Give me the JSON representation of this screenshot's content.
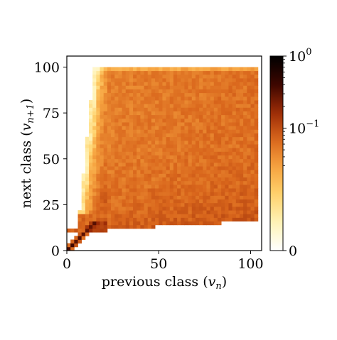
{
  "chart_data": {
    "type": "heatmap",
    "title": "",
    "xlabel": "previous class",
    "xlabel_symbol": "v",
    "xlabel_symbol_sub": "n",
    "ylabel": "next class",
    "ylabel_symbol": "v",
    "ylabel_symbol_sub": "n+1",
    "xlim": [
      0,
      106
    ],
    "ylim": [
      0,
      106
    ],
    "x_ticks": [
      0,
      50,
      100
    ],
    "y_ticks": [
      0,
      25,
      50,
      75,
      100
    ],
    "x_tick_labels": [
      "0",
      "50",
      "100"
    ],
    "y_tick_labels": [
      "0",
      "25",
      "50",
      "75",
      "100"
    ],
    "grid": false,
    "colormap": "afmhot_r",
    "colormap_stops": [
      "#ffffff",
      "#fff3b8",
      "#ffd36e",
      "#f6a340",
      "#d9661c",
      "#9a2a06",
      "#3a0500",
      "#000000"
    ],
    "density_summary": {
      "diagonal_band_up_to_x": 12,
      "fan_out_point": [
        12,
        12
      ],
      "upper_plateau_y": 100,
      "lower_boundary_y_at_x100": 16,
      "typical_interior_value": 0.05
    },
    "colorbar": {
      "scale": "symlog",
      "min": 0,
      "max": 1,
      "tick_labels": [
        {
          "value": 0,
          "base": "0",
          "exp": ""
        },
        {
          "value": 0.1,
          "base": "10",
          "exp": "−1"
        },
        {
          "value": 1,
          "base": "10",
          "exp": "0"
        }
      ]
    }
  }
}
